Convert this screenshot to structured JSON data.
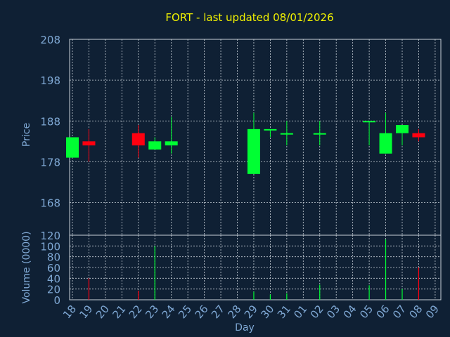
{
  "chart_data": {
    "type": "candlestick",
    "title": "FORT - last updated 08/01/2026",
    "xlabel": "Day",
    "price_panel": {
      "ylabel": "Price",
      "ylim": [
        160,
        208
      ],
      "yticks": [
        168,
        178,
        188,
        198,
        208
      ]
    },
    "volume_panel": {
      "ylabel": "Volume (0000)",
      "ylim": [
        0,
        120
      ],
      "yticks": [
        0,
        20,
        40,
        60,
        80,
        100,
        120
      ]
    },
    "x_ticks": [
      "18",
      "19",
      "20",
      "21",
      "22",
      "23",
      "24",
      "25",
      "26",
      "27",
      "28",
      "29",
      "30",
      "31",
      "01",
      "02",
      "03",
      "04",
      "05",
      "06",
      "07",
      "08",
      "09"
    ],
    "colors": {
      "background": "#0f2034",
      "grid": "#c8d0d8",
      "axis_text": "#7fa8d4",
      "title": "#f2f200",
      "up": "#00ff33",
      "down": "#ff0010"
    },
    "candles": [
      {
        "day": "18",
        "open": 179,
        "high": 184,
        "low": 179,
        "close": 184,
        "volume": 0
      },
      {
        "day": "19",
        "open": 183,
        "high": 186,
        "low": 178,
        "close": 182,
        "volume": 40
      },
      {
        "day": "22",
        "open": 185,
        "high": 187,
        "low": 179,
        "close": 182,
        "volume": 17
      },
      {
        "day": "23",
        "open": 181,
        "high": 184,
        "low": 181,
        "close": 183,
        "volume": 100
      },
      {
        "day": "24",
        "open": 182,
        "high": 189,
        "low": 180,
        "close": 183,
        "volume": 0
      },
      {
        "day": "29",
        "open": 175,
        "high": 190,
        "low": 175,
        "close": 186,
        "volume": 15
      },
      {
        "day": "30",
        "open": 186,
        "high": 186,
        "low": 184,
        "close": 186,
        "volume": 10
      },
      {
        "day": "31",
        "open": 185,
        "high": 188,
        "low": 182,
        "close": 185,
        "volume": 12
      },
      {
        "day": "02",
        "open": 185,
        "high": 188,
        "low": 182,
        "close": 185,
        "volume": 28
      },
      {
        "day": "05",
        "open": 188,
        "high": 188,
        "low": 182,
        "close": 188,
        "volume": 27
      },
      {
        "day": "06",
        "open": 180,
        "high": 190,
        "low": 180,
        "close": 185,
        "volume": 112
      },
      {
        "day": "07",
        "open": 185,
        "high": 187,
        "low": 182,
        "close": 187,
        "volume": 20
      },
      {
        "day": "08",
        "open": 185,
        "high": 186,
        "low": 183,
        "close": 184,
        "volume": 60
      }
    ]
  }
}
